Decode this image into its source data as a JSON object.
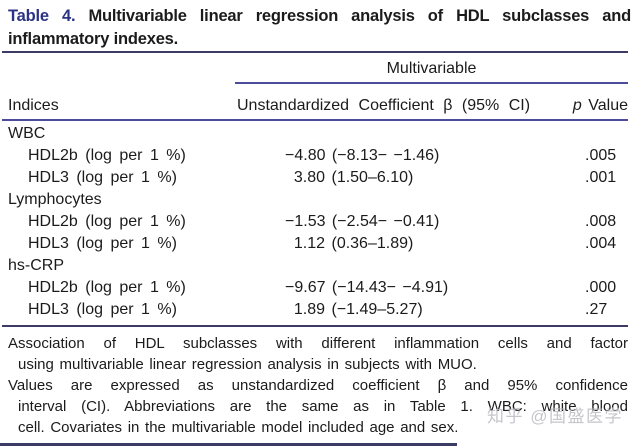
{
  "title": {
    "label": "Table 4.",
    "line1_rest": "Multivariable linear regression analysis of HDL subclasses and",
    "line2": "inflammatory indexes."
  },
  "table": {
    "spanner": "Multivariable",
    "headers": {
      "indices": "Indices",
      "beta": "Unstandardized Coefficient β (95% CI)",
      "p_italic": "p",
      "p_rest": " Value"
    },
    "rows": [
      {
        "label": "WBC",
        "type": "group"
      },
      {
        "label": "HDL2b (log per 1 %)",
        "beta": "−4.80 (−8.13− −1.46)",
        "p": ".005"
      },
      {
        "label": "HDL3 (log per 1 %)",
        "beta": " 3.80 (1.50–6.10)",
        "p": ".001"
      },
      {
        "label": "Lymphocytes",
        "type": "group"
      },
      {
        "label": "HDL2b (log per 1 %)",
        "beta": "−1.53 (−2.54− −0.41)",
        "p": ".008"
      },
      {
        "label": "HDL3 (log per 1 %)",
        "beta": " 1.12 (0.36–1.89)",
        "p": ".004"
      },
      {
        "label": "hs-CRP",
        "type": "group"
      },
      {
        "label": "HDL2b (log per 1 %)",
        "beta": "−9.67 (−14.43− −4.91)",
        "p": ".000"
      },
      {
        "label": "HDL3 (log per 1 %)",
        "beta": " 1.89 (−1.49–5.27)",
        "p": ".27"
      }
    ]
  },
  "footnotes": {
    "line1": "Association of HDL subclasses with different inflammation cells and factor",
    "line2": "using multivariable linear regression analysis in subjects with MUO.",
    "line3": "Values are expressed as unstandardized coefficient β and 95% confidence",
    "line4": "interval (CI). Abbreviations are the same as in Table 1. WBC: white blood",
    "line5": "cell. Covariates in the multivariable model included age and sex."
  },
  "watermark": "知乎 @国盛医学",
  "colors": {
    "title_navy": "#2b3383",
    "rule_dark": "#3b3b66",
    "rule_blue": "#4c4c9e",
    "watermark_gray": "#bcbcc2",
    "text": "#1b1b1b",
    "background": "#ffffff"
  }
}
